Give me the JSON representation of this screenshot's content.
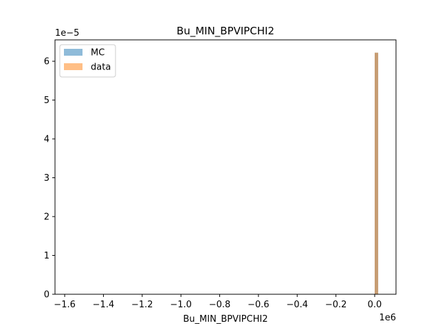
{
  "chart_data": {
    "type": "bar",
    "title": "Bu_MIN_BPVIPCHI2",
    "xlabel": "Bu_MIN_BPVIPCHI2",
    "ylabel": "",
    "x_offset_label": "1e6",
    "y_offset_label": "1e−5",
    "xlim": [
      -1.65,
      0.11
    ],
    "ylim": [
      0,
      6.55
    ],
    "x_ticks": [
      -1.6,
      -1.4,
      -1.2,
      -1.0,
      -0.8,
      -0.6,
      -0.4,
      -0.2,
      0.0
    ],
    "x_tick_labels": [
      "−1.6",
      "−1.4",
      "−1.2",
      "−1.0",
      "−0.8",
      "−0.6",
      "−0.4",
      "−0.2",
      "0.0"
    ],
    "y_ticks": [
      0,
      1,
      2,
      3,
      4,
      5,
      6
    ],
    "y_tick_labels": [
      "0",
      "1",
      "2",
      "3",
      "4",
      "5",
      "6"
    ],
    "legend_position": "top-left",
    "series": [
      {
        "name": "MC",
        "color": "#1f77b4",
        "opacity": 0.5,
        "bins": [
          {
            "x0": 0.0,
            "x1": 0.018,
            "value": 6.22
          }
        ]
      },
      {
        "name": "data",
        "color": "#ff7f0e",
        "opacity": 0.5,
        "bins": [
          {
            "x0": 0.0,
            "x1": 0.018,
            "value": 6.22
          }
        ]
      }
    ]
  }
}
